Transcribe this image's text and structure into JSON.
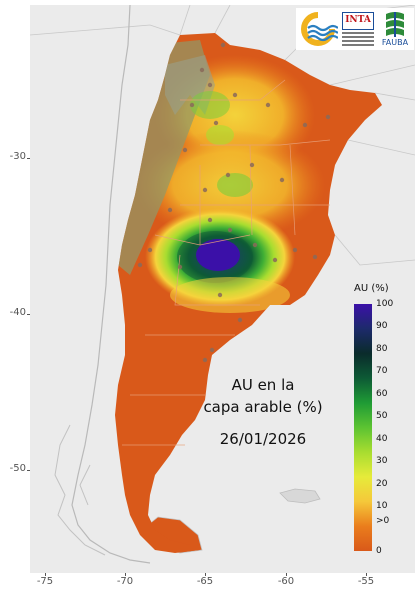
{
  "map": {
    "label_lines": [
      "AU en la",
      "capa arable (%)"
    ],
    "date": "26/01/2026",
    "x_ticks": [
      "-75",
      "-70",
      "-65",
      "-60",
      "-55"
    ],
    "y_ticks": [
      "-30",
      "-40",
      "-50"
    ],
    "region": "Argentina",
    "variable": "AU",
    "base_color": "#d9591a",
    "background_color": "#ebebeb"
  },
  "legend": {
    "title": "AU (%)",
    "ticks": [
      "100",
      "90",
      "80",
      "70",
      "60",
      "50",
      "40",
      "30",
      "20",
      "10",
      ">0",
      "0"
    ],
    "colors": [
      "#3b10a8",
      "#0a2b2b",
      "#0d5a35",
      "#1f9b35",
      "#5cc332",
      "#a8dd30",
      "#e6eb3a",
      "#f5d43c",
      "#f4a826",
      "#ea7d1c",
      "#d9591a"
    ]
  },
  "logos": {
    "inta": "INTA",
    "fauba": "FAUBA",
    "icons": [
      "water-wave-logo-icon",
      "inta-logo-icon",
      "fauba-logo-icon"
    ]
  }
}
